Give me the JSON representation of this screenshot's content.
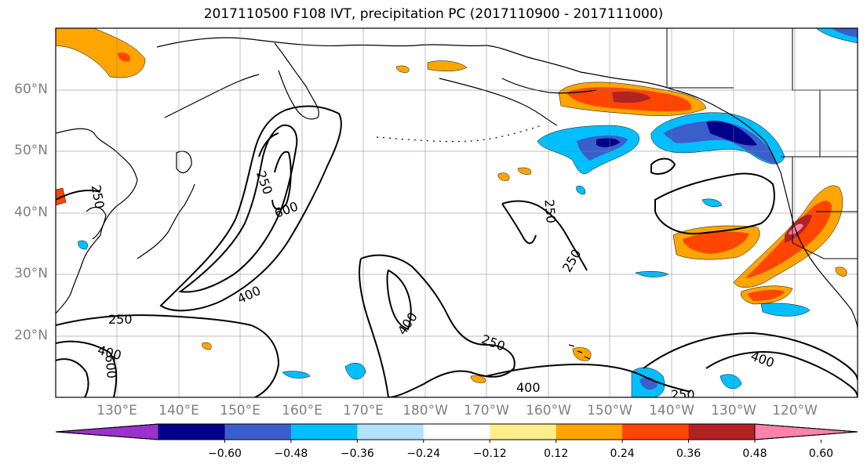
{
  "title": "2017110500 F108 IVT, precipitation PC (2017110900 - 2017111000)",
  "lat_labels": [
    "60°N",
    "50°N",
    "40°N",
    "30°N",
    "20°N"
  ],
  "lon_labels": [
    "130°E",
    "140°E",
    "150°E",
    "160°E",
    "170°E",
    "180°W",
    "170°W",
    "160°W",
    "150°W",
    "140°W",
    "130°W",
    "120°W"
  ],
  "contour_labels": [
    "250",
    "250",
    "250",
    "250",
    "250",
    "250",
    "250",
    "400",
    "400",
    "400",
    "400",
    "400",
    "600",
    "600"
  ],
  "colorbar": {
    "tick_labels": [
      "−0.60",
      "−0.48",
      "−0.36",
      "−0.24",
      "−0.12",
      "0.12",
      "0.24",
      "0.36",
      "0.48",
      "0.60"
    ],
    "colors": [
      "#9a32cd",
      "#00008b",
      "#3a5fcd",
      "#00bfff",
      "#b0e2ff",
      "#ffffff",
      "#ffec8b",
      "#ffa500",
      "#ff4500",
      "#b22222",
      "#ff82ab"
    ]
  }
}
